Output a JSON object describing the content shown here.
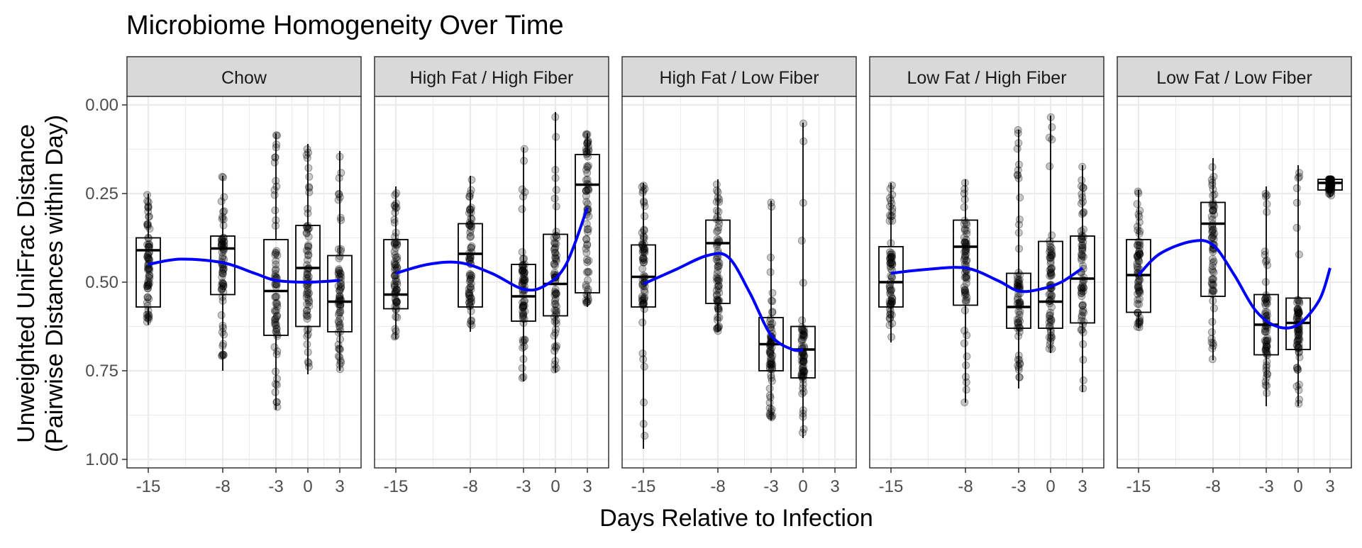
{
  "chart_data": {
    "type": "box",
    "title": "Microbiome Homogeneity Over Time",
    "xlabel": "Days Relative to Infection",
    "ylabel_line1": "Unweighted UniFrac Distance",
    "ylabel_line2": "(Pairwise Distances within Day)",
    "y_reversed": true,
    "ylim": [
      0,
      1
    ],
    "yticks": [
      0.0,
      0.25,
      0.5,
      0.75,
      1.0
    ],
    "ytick_labels": [
      "0.00",
      "0.25",
      "0.50",
      "0.75",
      "1.00"
    ],
    "xlim": [
      -17,
      5
    ],
    "xticks": [
      -15,
      -8,
      -3,
      0,
      3
    ],
    "xtick_labels": [
      "-15",
      "-8",
      "-3",
      "0",
      "3"
    ],
    "grid": true,
    "colors": {
      "points": "#000000",
      "smooth": "#0000ff",
      "strip": "#d9d9d9",
      "grid": "#ebebeb"
    },
    "panels": [
      {
        "name": "Chow",
        "boxes": [
          {
            "day": -15,
            "q1": 0.375,
            "median": 0.41,
            "q3": 0.57,
            "wlo": 0.25,
            "whi": 0.62
          },
          {
            "day": -8,
            "q1": 0.37,
            "median": 0.405,
            "q3": 0.535,
            "wlo": 0.2,
            "whi": 0.75
          },
          {
            "day": -3,
            "q1": 0.38,
            "median": 0.525,
            "q3": 0.65,
            "wlo": 0.08,
            "whi": 0.86
          },
          {
            "day": 0,
            "q1": 0.34,
            "median": 0.46,
            "q3": 0.625,
            "wlo": 0.11,
            "whi": 0.76
          },
          {
            "day": 3,
            "q1": 0.425,
            "median": 0.555,
            "q3": 0.64,
            "wlo": 0.13,
            "whi": 0.75
          }
        ],
        "smooth": [
          [
            -15,
            0.45
          ],
          [
            -12,
            0.435
          ],
          [
            -8,
            0.445
          ],
          [
            -5,
            0.475
          ],
          [
            -3,
            0.495
          ],
          [
            0,
            0.5
          ],
          [
            3,
            0.495
          ]
        ]
      },
      {
        "name": "High Fat / High Fiber",
        "boxes": [
          {
            "day": -15,
            "q1": 0.38,
            "median": 0.535,
            "q3": 0.575,
            "wlo": 0.23,
            "whi": 0.66
          },
          {
            "day": -8,
            "q1": 0.335,
            "median": 0.42,
            "q3": 0.57,
            "wlo": 0.2,
            "whi": 0.64
          },
          {
            "day": -3,
            "q1": 0.45,
            "median": 0.54,
            "q3": 0.61,
            "wlo": 0.12,
            "whi": 0.78
          },
          {
            "day": 0,
            "q1": 0.365,
            "median": 0.505,
            "q3": 0.595,
            "wlo": 0.02,
            "whi": 0.755
          },
          {
            "day": 3,
            "q1": 0.14,
            "median": 0.225,
            "q3": 0.53,
            "wlo": 0.08,
            "whi": 0.57
          }
        ],
        "smooth": [
          [
            -15,
            0.475
          ],
          [
            -12,
            0.45
          ],
          [
            -9,
            0.445
          ],
          [
            -6,
            0.475
          ],
          [
            -3,
            0.52
          ],
          [
            -1,
            0.51
          ],
          [
            1,
            0.45
          ],
          [
            3,
            0.29
          ]
        ]
      },
      {
        "name": "High Fat / Low Fiber",
        "boxes": [
          {
            "day": -15,
            "q1": 0.395,
            "median": 0.485,
            "q3": 0.57,
            "wlo": 0.22,
            "whi": 0.97
          },
          {
            "day": -8,
            "q1": 0.325,
            "median": 0.39,
            "q3": 0.56,
            "wlo": 0.21,
            "whi": 0.64
          },
          {
            "day": -3,
            "q1": 0.6,
            "median": 0.675,
            "q3": 0.75,
            "wlo": 0.27,
            "whi": 0.89
          },
          {
            "day": 0,
            "q1": 0.625,
            "median": 0.69,
            "q3": 0.77,
            "wlo": 0.05,
            "whi": 0.94
          }
        ],
        "smooth": [
          [
            -15,
            0.505
          ],
          [
            -12,
            0.465
          ],
          [
            -9,
            0.425
          ],
          [
            -7,
            0.43
          ],
          [
            -5,
            0.53
          ],
          [
            -3,
            0.65
          ],
          [
            -1,
            0.69
          ],
          [
            0,
            0.69
          ]
        ]
      },
      {
        "name": "Low Fat / High Fiber",
        "boxes": [
          {
            "day": -15,
            "q1": 0.4,
            "median": 0.5,
            "q3": 0.57,
            "wlo": 0.22,
            "whi": 0.67
          },
          {
            "day": -8,
            "q1": 0.325,
            "median": 0.4,
            "q3": 0.565,
            "wlo": 0.21,
            "whi": 0.84
          },
          {
            "day": -3,
            "q1": 0.475,
            "median": 0.57,
            "q3": 0.63,
            "wlo": 0.07,
            "whi": 0.8
          },
          {
            "day": 0,
            "q1": 0.385,
            "median": 0.555,
            "q3": 0.63,
            "wlo": 0.03,
            "whi": 0.7
          },
          {
            "day": 3,
            "q1": 0.37,
            "median": 0.49,
            "q3": 0.615,
            "wlo": 0.17,
            "whi": 0.81
          }
        ],
        "smooth": [
          [
            -15,
            0.475
          ],
          [
            -12,
            0.465
          ],
          [
            -8,
            0.46
          ],
          [
            -5,
            0.495
          ],
          [
            -3,
            0.525
          ],
          [
            -1,
            0.52
          ],
          [
            1,
            0.5
          ],
          [
            3,
            0.46
          ]
        ]
      },
      {
        "name": "Low Fat / Low Fiber",
        "boxes": [
          {
            "day": -15,
            "q1": 0.38,
            "median": 0.48,
            "q3": 0.585,
            "wlo": 0.24,
            "whi": 0.63
          },
          {
            "day": -8,
            "q1": 0.275,
            "median": 0.335,
            "q3": 0.54,
            "wlo": 0.15,
            "whi": 0.72
          },
          {
            "day": -3,
            "q1": 0.535,
            "median": 0.62,
            "q3": 0.705,
            "wlo": 0.23,
            "whi": 0.85
          },
          {
            "day": 0,
            "q1": 0.545,
            "median": 0.615,
            "q3": 0.69,
            "wlo": 0.17,
            "whi": 0.85
          },
          {
            "day": 3,
            "q1": 0.21,
            "median": 0.22,
            "q3": 0.24,
            "wlo": 0.21,
            "whi": 0.26
          }
        ],
        "smooth": [
          [
            -15,
            0.48
          ],
          [
            -13,
            0.42
          ],
          [
            -10,
            0.385
          ],
          [
            -8,
            0.395
          ],
          [
            -6,
            0.48
          ],
          [
            -4,
            0.58
          ],
          [
            -2,
            0.625
          ],
          [
            0,
            0.62
          ],
          [
            2,
            0.55
          ],
          [
            3,
            0.46
          ]
        ]
      }
    ]
  }
}
